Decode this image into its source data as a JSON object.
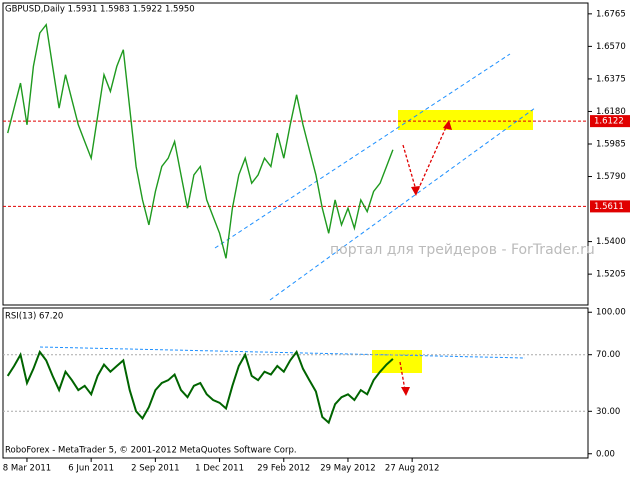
{
  "chart_data": [
    {
      "type": "line",
      "title": "GBPUSD,Daily  1.5931 1.5983 1.5922 1.5950",
      "watermark": "портал для трейдеров - ForTrader.ru",
      "categories": [
        null,
        null,
        null,
        "8 Mar 2011",
        null,
        null,
        null,
        null,
        null,
        null,
        null,
        null,
        null,
        "6 Jun 2011",
        null,
        null,
        null,
        null,
        null,
        null,
        null,
        null,
        null,
        "2 Sep 2011",
        null,
        null,
        null,
        null,
        null,
        null,
        null,
        null,
        null,
        "1 Dec 2011",
        null,
        null,
        null,
        null,
        null,
        null,
        null,
        null,
        null,
        "29 Feb 2012",
        null,
        null,
        null,
        null,
        null,
        null,
        null,
        null,
        null,
        "29 May 2012",
        null,
        null,
        null,
        null,
        null,
        null,
        null,
        null,
        null,
        "27 Aug 2012"
      ],
      "series": [
        {
          "name": "GBPUSD",
          "color": "#1f9a1f",
          "values": [
            1.605,
            1.62,
            1.635,
            1.61,
            1.645,
            1.665,
            1.67,
            1.645,
            1.62,
            1.64,
            1.625,
            1.61,
            1.6,
            1.59,
            1.615,
            1.64,
            1.63,
            1.645,
            1.655,
            1.62,
            1.585,
            1.565,
            1.55,
            1.57,
            1.585,
            1.59,
            1.6,
            1.58,
            1.56,
            1.58,
            1.585,
            1.565,
            1.555,
            1.545,
            1.53,
            1.56,
            1.58,
            1.59,
            1.575,
            1.58,
            1.59,
            1.585,
            1.605,
            1.59,
            1.61,
            1.628,
            1.61,
            1.595,
            1.58,
            1.56,
            1.545,
            1.565,
            1.55,
            1.56,
            1.548,
            1.565,
            1.558,
            1.57,
            1.575,
            1.585,
            1.595,
            null,
            null,
            null
          ]
        }
      ],
      "ylim": [
        1.502,
        1.683
      ],
      "yticks": [
        1.6765,
        {
          "value": 1.657,
          "label": "1.6570"
        },
        1.6375,
        {
          "value": 1.618,
          "label": "1.6180"
        },
        1.5985,
        {
          "value": 1.579,
          "label": "1.5790"
        },
        {
          "value": 1.54,
          "label": "1.5400"
        },
        1.5205
      ],
      "levels": [
        {
          "value": 1.6122,
          "label": "1.6122"
        },
        {
          "value": 1.5611,
          "label": "1.5611"
        }
      ],
      "level_color": "#e00000"
    },
    {
      "type": "line",
      "title": "RSI(13) 67.20",
      "footer": "RoboForex - MetaTrader 5, © 2001-2012 MetaQuotes Software Corp.",
      "series": [
        {
          "name": "RSI(13)",
          "color": "#006400",
          "values": [
            55,
            62,
            70,
            50,
            60,
            72,
            66,
            55,
            45,
            58,
            52,
            45,
            48,
            42,
            55,
            63,
            58,
            62,
            66,
            45,
            30,
            25,
            33,
            45,
            50,
            52,
            56,
            45,
            40,
            48,
            50,
            42,
            38,
            36,
            32,
            48,
            62,
            70,
            55,
            52,
            58,
            56,
            62,
            58,
            66,
            72,
            60,
            52,
            44,
            26,
            22,
            35,
            40,
            42,
            38,
            45,
            42,
            52,
            58,
            63,
            67,
            null,
            null,
            null
          ]
        }
      ],
      "ylim": [
        -3,
        103
      ],
      "yticks": [
        {
          "value": 100,
          "label": "100.00"
        },
        {
          "value": 70,
          "label": "70.00"
        },
        {
          "value": 30,
          "label": "30.00"
        },
        {
          "value": 0,
          "label": "0.00"
        }
      ]
    }
  ]
}
